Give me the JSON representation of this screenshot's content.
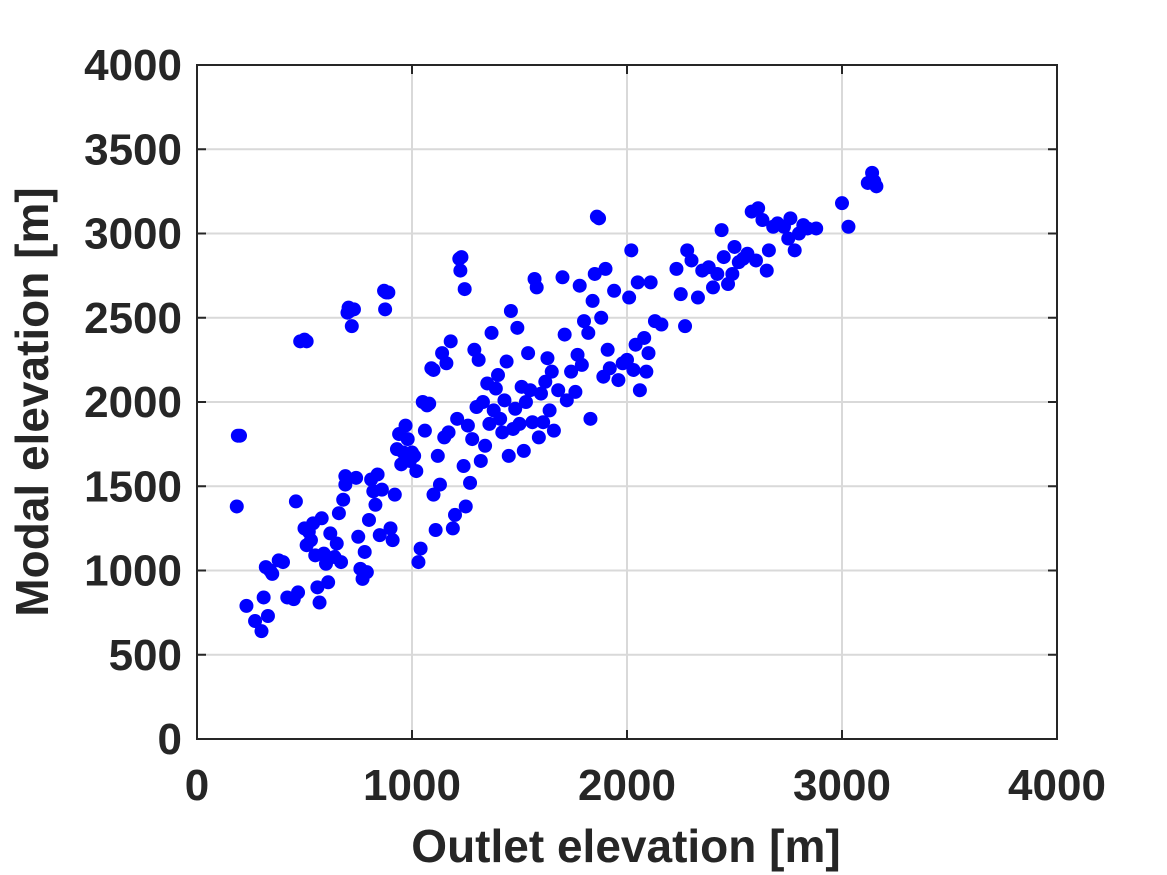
{
  "chart_data": {
    "type": "scatter",
    "title": "",
    "xlabel": "Outlet elevation [m]",
    "ylabel": "Modal elevation [m]",
    "xlim": [
      0,
      4000
    ],
    "ylim": [
      0,
      4000
    ],
    "x_ticks": [
      "0",
      "1000",
      "2000",
      "3000",
      "4000"
    ],
    "y_ticks": [
      "0",
      "500",
      "1000",
      "1500",
      "2000",
      "2500",
      "3000",
      "3500",
      "4000"
    ],
    "grid": true,
    "marker_color": "#0000ff",
    "series": [
      {
        "points": [
          [
            190,
            1800
          ],
          [
            200,
            1800
          ],
          [
            185,
            1380
          ],
          [
            230,
            790
          ],
          [
            270,
            700
          ],
          [
            300,
            640
          ],
          [
            310,
            840
          ],
          [
            320,
            1020
          ],
          [
            340,
            1000
          ],
          [
            350,
            980
          ],
          [
            330,
            730
          ],
          [
            380,
            1060
          ],
          [
            400,
            1050
          ],
          [
            420,
            840
          ],
          [
            450,
            830
          ],
          [
            460,
            1410
          ],
          [
            470,
            870
          ],
          [
            480,
            2360
          ],
          [
            500,
            2370
          ],
          [
            510,
            2360
          ],
          [
            500,
            1250
          ],
          [
            510,
            1150
          ],
          [
            520,
            1230
          ],
          [
            530,
            1180
          ],
          [
            540,
            1280
          ],
          [
            550,
            1090
          ],
          [
            560,
            900
          ],
          [
            570,
            810
          ],
          [
            580,
            1310
          ],
          [
            590,
            1100
          ],
          [
            600,
            1040
          ],
          [
            610,
            930
          ],
          [
            620,
            1220
          ],
          [
            640,
            1080
          ],
          [
            650,
            1160
          ],
          [
            660,
            1340
          ],
          [
            670,
            1050
          ],
          [
            680,
            1420
          ],
          [
            690,
            1510
          ],
          [
            690,
            1560
          ],
          [
            700,
            2530
          ],
          [
            705,
            2560
          ],
          [
            710,
            2540
          ],
          [
            720,
            2450
          ],
          [
            730,
            2550
          ],
          [
            740,
            1550
          ],
          [
            750,
            1200
          ],
          [
            760,
            1010
          ],
          [
            770,
            950
          ],
          [
            780,
            1110
          ],
          [
            790,
            990
          ],
          [
            800,
            1300
          ],
          [
            810,
            1540
          ],
          [
            820,
            1470
          ],
          [
            830,
            1390
          ],
          [
            840,
            1570
          ],
          [
            850,
            1210
          ],
          [
            860,
            1480
          ],
          [
            870,
            2660
          ],
          [
            875,
            2550
          ],
          [
            880,
            2650
          ],
          [
            890,
            2650
          ],
          [
            900,
            1250
          ],
          [
            910,
            1180
          ],
          [
            920,
            1450
          ],
          [
            930,
            1720
          ],
          [
            940,
            1810
          ],
          [
            950,
            1630
          ],
          [
            960,
            1700
          ],
          [
            970,
            1860
          ],
          [
            980,
            1780
          ],
          [
            990,
            1650
          ],
          [
            1000,
            1700
          ],
          [
            1010,
            1680
          ],
          [
            1020,
            1590
          ],
          [
            1030,
            1050
          ],
          [
            1040,
            1130
          ],
          [
            1050,
            2000
          ],
          [
            1060,
            1830
          ],
          [
            1070,
            1980
          ],
          [
            1080,
            1990
          ],
          [
            1090,
            2200
          ],
          [
            1100,
            2190
          ],
          [
            1100,
            1450
          ],
          [
            1110,
            1240
          ],
          [
            1120,
            1680
          ],
          [
            1130,
            1510
          ],
          [
            1140,
            2290
          ],
          [
            1150,
            1790
          ],
          [
            1160,
            2230
          ],
          [
            1170,
            1820
          ],
          [
            1180,
            2360
          ],
          [
            1190,
            1250
          ],
          [
            1200,
            1330
          ],
          [
            1210,
            1900
          ],
          [
            1220,
            2850
          ],
          [
            1225,
            2780
          ],
          [
            1230,
            2860
          ],
          [
            1240,
            1620
          ],
          [
            1245,
            2670
          ],
          [
            1250,
            1380
          ],
          [
            1260,
            1860
          ],
          [
            1270,
            1520
          ],
          [
            1280,
            1780
          ],
          [
            1290,
            2310
          ],
          [
            1300,
            1970
          ],
          [
            1310,
            2250
          ],
          [
            1320,
            1650
          ],
          [
            1330,
            2000
          ],
          [
            1340,
            1740
          ],
          [
            1350,
            2110
          ],
          [
            1360,
            1870
          ],
          [
            1370,
            2410
          ],
          [
            1380,
            1950
          ],
          [
            1390,
            2080
          ],
          [
            1400,
            2160
          ],
          [
            1410,
            1900
          ],
          [
            1420,
            1820
          ],
          [
            1430,
            2010
          ],
          [
            1440,
            2240
          ],
          [
            1450,
            1680
          ],
          [
            1460,
            2540
          ],
          [
            1470,
            1840
          ],
          [
            1480,
            1960
          ],
          [
            1490,
            2440
          ],
          [
            1500,
            1870
          ],
          [
            1510,
            2090
          ],
          [
            1520,
            1710
          ],
          [
            1530,
            2000
          ],
          [
            1540,
            2290
          ],
          [
            1550,
            2070
          ],
          [
            1560,
            1880
          ],
          [
            1570,
            2730
          ],
          [
            1580,
            2680
          ],
          [
            1590,
            1790
          ],
          [
            1600,
            2050
          ],
          [
            1610,
            1880
          ],
          [
            1620,
            2120
          ],
          [
            1630,
            2260
          ],
          [
            1640,
            1950
          ],
          [
            1650,
            2180
          ],
          [
            1660,
            1830
          ],
          [
            1680,
            2070
          ],
          [
            1700,
            2740
          ],
          [
            1710,
            2400
          ],
          [
            1720,
            2010
          ],
          [
            1740,
            2180
          ],
          [
            1760,
            2060
          ],
          [
            1770,
            2280
          ],
          [
            1780,
            2690
          ],
          [
            1790,
            2220
          ],
          [
            1800,
            2480
          ],
          [
            1820,
            2410
          ],
          [
            1830,
            1900
          ],
          [
            1840,
            2600
          ],
          [
            1850,
            2760
          ],
          [
            1860,
            3100
          ],
          [
            1870,
            3090
          ],
          [
            1880,
            2500
          ],
          [
            1890,
            2150
          ],
          [
            1900,
            2790
          ],
          [
            1910,
            2310
          ],
          [
            1920,
            2200
          ],
          [
            1940,
            2660
          ],
          [
            1960,
            2130
          ],
          [
            1980,
            2230
          ],
          [
            2000,
            2250
          ],
          [
            2010,
            2620
          ],
          [
            2020,
            2900
          ],
          [
            2030,
            2190
          ],
          [
            2040,
            2340
          ],
          [
            2050,
            2710
          ],
          [
            2060,
            2070
          ],
          [
            2080,
            2380
          ],
          [
            2090,
            2180
          ],
          [
            2100,
            2290
          ],
          [
            2110,
            2710
          ],
          [
            2130,
            2480
          ],
          [
            2160,
            2460
          ],
          [
            2230,
            2790
          ],
          [
            2250,
            2640
          ],
          [
            2270,
            2450
          ],
          [
            2280,
            2900
          ],
          [
            2300,
            2840
          ],
          [
            2330,
            2620
          ],
          [
            2350,
            2780
          ],
          [
            2380,
            2800
          ],
          [
            2400,
            2680
          ],
          [
            2420,
            2760
          ],
          [
            2440,
            3020
          ],
          [
            2450,
            2860
          ],
          [
            2470,
            2700
          ],
          [
            2490,
            2760
          ],
          [
            2500,
            2920
          ],
          [
            2520,
            2830
          ],
          [
            2540,
            2850
          ],
          [
            2560,
            2880
          ],
          [
            2580,
            3130
          ],
          [
            2600,
            2840
          ],
          [
            2610,
            3150
          ],
          [
            2630,
            3080
          ],
          [
            2650,
            2780
          ],
          [
            2660,
            2900
          ],
          [
            2680,
            3040
          ],
          [
            2700,
            3060
          ],
          [
            2730,
            3040
          ],
          [
            2750,
            2970
          ],
          [
            2760,
            3090
          ],
          [
            2780,
            2900
          ],
          [
            2800,
            3000
          ],
          [
            2820,
            3050
          ],
          [
            2840,
            3030
          ],
          [
            2880,
            3030
          ],
          [
            3000,
            3180
          ],
          [
            3030,
            3040
          ],
          [
            3120,
            3300
          ],
          [
            3140,
            3360
          ],
          [
            3150,
            3310
          ],
          [
            3160,
            3280
          ]
        ]
      }
    ]
  }
}
